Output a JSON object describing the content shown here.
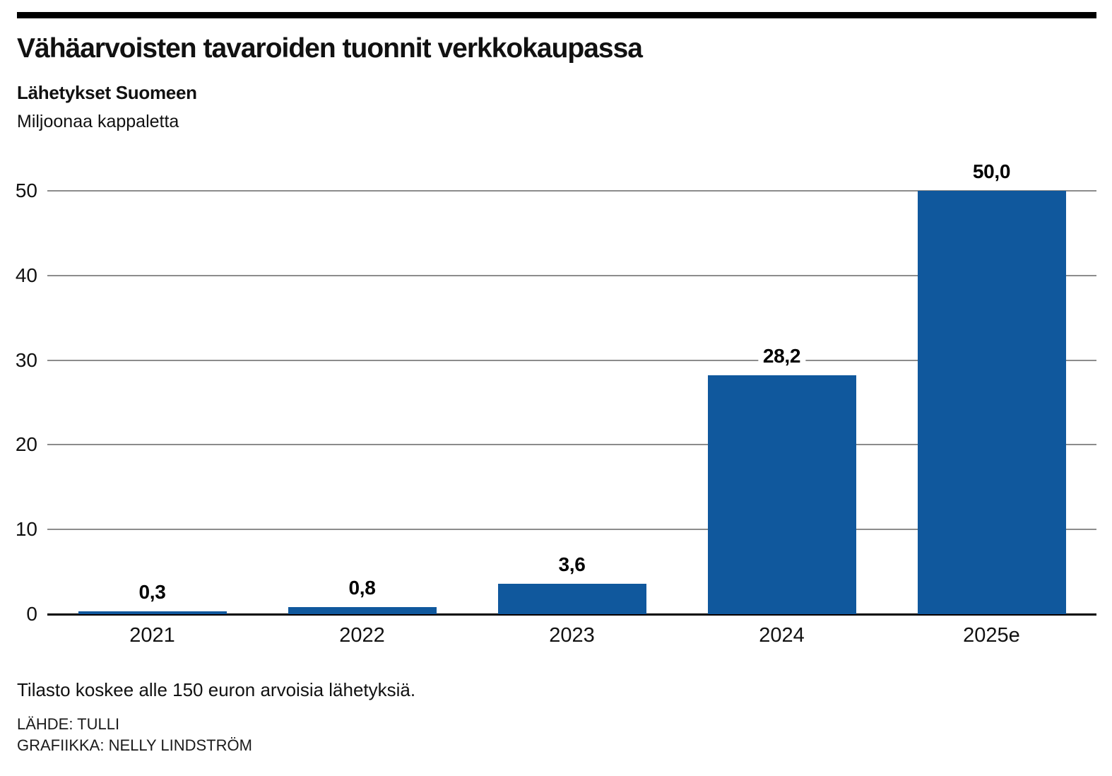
{
  "header": {
    "title": "Vähäarvoisten tavaroiden tuonnit verkkokaupassa",
    "subtitle": "Lähetykset Suomeen",
    "unit": "Miljoonaa kappaletta"
  },
  "chart_data": {
    "type": "bar",
    "title": "Vähäarvoisten tavaroiden tuonnit verkkokaupassa",
    "subtitle": "Lähetykset Suomeen",
    "ylabel": "Miljoonaa kappaletta",
    "xlabel": "",
    "categories": [
      "2021",
      "2022",
      "2023",
      "2024",
      "2025e"
    ],
    "values": [
      0.3,
      0.8,
      3.6,
      28.2,
      50.0
    ],
    "value_labels": [
      "0,3",
      "0,8",
      "3,6",
      "28,2",
      "50,0"
    ],
    "ylim": [
      0,
      50
    ],
    "yticks": [
      0,
      10,
      20,
      30,
      40,
      50
    ],
    "grid": true,
    "legend": false,
    "bar_color": "#10589d"
  },
  "colors": {
    "bar": "#10589d",
    "gridline": "#8c8c8c",
    "axis": "#000000",
    "rule": "#000000"
  },
  "footer": {
    "note": "Tilasto koskee alle 150 euron arvoisia lähetyksiä.",
    "source": "LÄHDE: TULLI",
    "credit": "GRAFIIKKA: NELLY LINDSTRÖM"
  }
}
